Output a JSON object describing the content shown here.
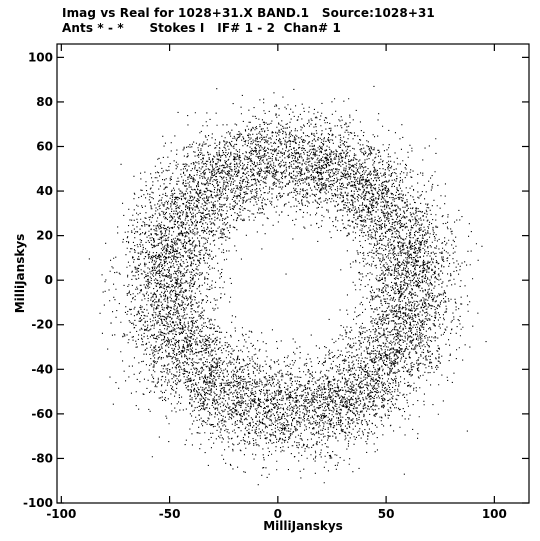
{
  "header": {
    "title": "Imag vs Real for 1028+31.X BAND.1   Source:1028+31",
    "subtitle": "Ants * - *      Stokes I   IF# 1 - 2  Chan# 1"
  },
  "chart_data": {
    "type": "scatter",
    "title": "Imag vs Real for 1028+31.X BAND.1   Source:1028+31",
    "subtitle": "Ants * - *      Stokes I   IF# 1 - 2  Chan# 1",
    "xlabel": "MilliJanskys",
    "ylabel": "MilliJanskys",
    "xlim": [
      -102,
      116
    ],
    "ylim": [
      -100,
      106
    ],
    "xticks": [
      -100,
      -50,
      0,
      50,
      100
    ],
    "yticks": [
      -100,
      -80,
      -60,
      -40,
      -20,
      0,
      20,
      40,
      60,
      80,
      100
    ],
    "xtick_labels": [
      "-100",
      "-50",
      "0",
      "50",
      "100"
    ],
    "ytick_labels": [
      "-100",
      "-80",
      "-60",
      "-40",
      "-20",
      "0",
      "20",
      "40",
      "60",
      "80",
      "100"
    ],
    "grid": false,
    "marker_color": "#000000",
    "series": [
      {
        "description_center": [
          5,
          -2
        ],
        "ring_mean_radius_mjy": 58,
        "ring_radial_spread_mjy": 11,
        "approx_point_count": 18000
      }
    ]
  }
}
